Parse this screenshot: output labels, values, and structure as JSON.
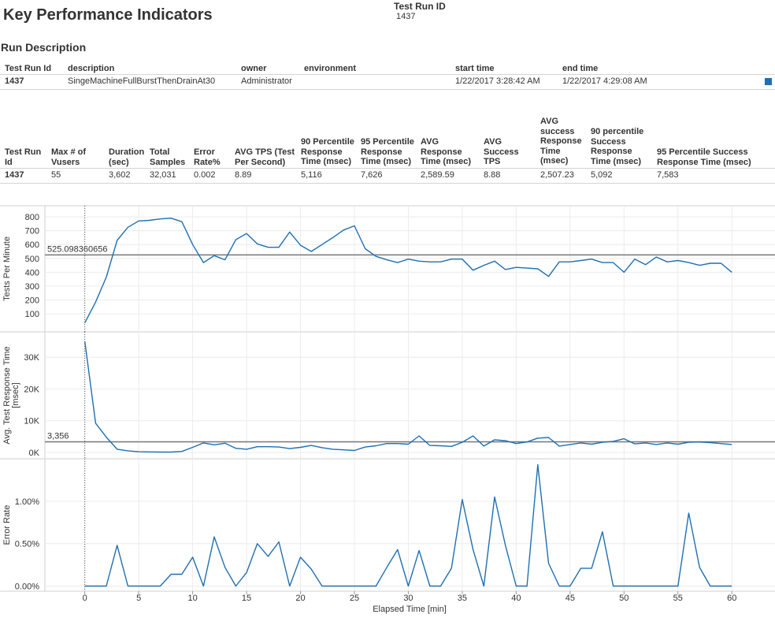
{
  "kpi_title": "Key Performance Indicators",
  "parameter": {
    "label": "Test Run ID",
    "value": "1437"
  },
  "run_description": {
    "title": "Run Description",
    "headers": [
      "Test Run Id",
      "description",
      "owner",
      "environment",
      "start time",
      "end time"
    ],
    "row": [
      "1437",
      "SingeMachineFullBurstThenDrainAt30",
      "Administrator",
      "",
      "1/22/2017 3:28:42 AM",
      "1/22/2017 4:29:08 AM"
    ]
  },
  "kpi_table": {
    "headers": [
      [
        "Test Run",
        "Id"
      ],
      [
        "Max # of",
        "Vusers"
      ],
      [
        "Duration",
        "(sec)"
      ],
      [
        "Total",
        "Samples"
      ],
      [
        "Error",
        "Rate%"
      ],
      [
        "AVG TPS (Test",
        "Per Second)"
      ],
      [
        "90 Percentile",
        "Response",
        "Time (msec)"
      ],
      [
        "95 Percentile",
        "Response",
        "Time (msec)"
      ],
      [
        "AVG",
        "Response",
        "Time (msec)"
      ],
      [
        "AVG",
        "Success",
        "TPS"
      ],
      [
        "AVG",
        "success",
        "Response",
        "Time",
        "(msec)"
      ],
      [
        "90 percentile",
        "Success",
        "Response",
        "Time (msec)"
      ],
      [
        "95 Percentile Success",
        "Response Time (msec)"
      ]
    ],
    "row": [
      "1437",
      "55",
      "3,602",
      "32,031",
      "0.002",
      "8.89",
      "5,116",
      "7,626",
      "2,589.59",
      "8.88",
      "2,507.23",
      "5,092",
      "7,583"
    ]
  },
  "chart_data": [
    {
      "type": "line",
      "ylabel": "Tests Per Minute",
      "yticks": [
        100,
        200,
        300,
        400,
        500,
        600,
        700,
        800
      ],
      "ytick_labels": [
        "100",
        "200",
        "300",
        "400",
        "500",
        "600",
        "700",
        "800"
      ],
      "ylim": [
        -30,
        880
      ],
      "reference_line": {
        "value": 525.098360656,
        "label": "525.098360656"
      },
      "x": [
        0,
        1,
        2,
        3,
        4,
        5,
        6,
        7,
        8,
        9,
        10,
        11,
        12,
        13,
        14,
        15,
        16,
        17,
        18,
        19,
        20,
        21,
        22,
        23,
        24,
        25,
        26,
        27,
        28,
        29,
        30,
        31,
        32,
        33,
        34,
        35,
        36,
        37,
        38,
        39,
        40,
        41,
        42,
        43,
        44,
        45,
        46,
        47,
        48,
        49,
        50,
        51,
        52,
        53,
        54,
        55,
        56,
        57,
        58,
        59,
        60
      ],
      "values": [
        35,
        185,
        365,
        630,
        725,
        770,
        775,
        785,
        790,
        765,
        600,
        470,
        520,
        490,
        635,
        680,
        605,
        580,
        580,
        690,
        595,
        550,
        600,
        650,
        705,
        735,
        570,
        515,
        490,
        470,
        495,
        480,
        475,
        475,
        495,
        495,
        415,
        450,
        480,
        420,
        435,
        430,
        425,
        370,
        475,
        475,
        485,
        495,
        470,
        470,
        400,
        495,
        455,
        510,
        475,
        485,
        470,
        450,
        465,
        465,
        400
      ]
    },
    {
      "type": "line",
      "ylabel": "Avg. Test Response Time [msec]",
      "yticks": [
        0,
        10000,
        20000,
        30000
      ],
      "ytick_labels": [
        "0K",
        "10K",
        "20K",
        "30K"
      ],
      "ylim": [
        -2000,
        38000
      ],
      "reference_line": {
        "value": 3356,
        "label": "3,356"
      },
      "x": [
        0,
        1,
        2,
        3,
        4,
        5,
        6,
        7,
        8,
        9,
        10,
        11,
        12,
        13,
        14,
        15,
        16,
        17,
        18,
        19,
        20,
        21,
        22,
        23,
        24,
        25,
        26,
        27,
        28,
        29,
        30,
        31,
        32,
        33,
        34,
        35,
        36,
        37,
        38,
        39,
        40,
        41,
        42,
        43,
        44,
        45,
        46,
        47,
        48,
        49,
        50,
        51,
        52,
        53,
        54,
        55,
        56,
        57,
        58,
        59,
        60
      ],
      "values": [
        35000,
        9200,
        4800,
        1000,
        500,
        200,
        150,
        100,
        100,
        300,
        1600,
        3000,
        2400,
        2900,
        1300,
        1000,
        1800,
        1800,
        1700,
        1200,
        1600,
        2200,
        1500,
        1000,
        800,
        600,
        1700,
        2100,
        2800,
        2800,
        2600,
        5200,
        2200,
        2100,
        1900,
        3200,
        5200,
        2000,
        4000,
        3700,
        2800,
        3300,
        4500,
        4700,
        2000,
        2500,
        3000,
        2600,
        3200,
        3500,
        4300,
        2700,
        3000,
        2500,
        3000,
        2600,
        3200,
        3300,
        3100,
        2800,
        2500
      ]
    },
    {
      "type": "line",
      "ylabel": "Error Rate",
      "xlabel": "Elapsed Time [min]",
      "yticks": [
        0,
        0.005,
        0.01
      ],
      "ytick_labels": [
        "0.00%",
        "0.50%",
        "1.00%"
      ],
      "ylim": [
        -0.0006,
        0.015
      ],
      "xticks": [
        0,
        5,
        10,
        15,
        20,
        25,
        30,
        35,
        40,
        45,
        50,
        55,
        60
      ],
      "xlim": [
        -3.7,
        64
      ],
      "x": [
        0,
        1,
        2,
        3,
        4,
        5,
        6,
        7,
        8,
        9,
        10,
        11,
        12,
        13,
        14,
        15,
        16,
        17,
        18,
        19,
        20,
        21,
        22,
        23,
        24,
        25,
        26,
        27,
        28,
        29,
        30,
        31,
        32,
        33,
        34,
        35,
        36,
        37,
        38,
        39,
        40,
        41,
        42,
        43,
        44,
        45,
        46,
        47,
        48,
        49,
        50,
        51,
        52,
        53,
        54,
        55,
        56,
        57,
        58,
        59,
        60
      ],
      "values": [
        0,
        0,
        0,
        0.0048,
        0,
        0,
        0,
        0,
        0.0014,
        0.0014,
        0.0034,
        0,
        0.0058,
        0.0022,
        0,
        0.0016,
        0.005,
        0.0035,
        0.0052,
        0,
        0.0034,
        0.002,
        0,
        0,
        0,
        0,
        0,
        0,
        0.0022,
        0.0043,
        0,
        0.0042,
        0,
        0,
        0.0021,
        0.0102,
        0.0043,
        0,
        0.0105,
        0.0048,
        0,
        0,
        0.0143,
        0.0027,
        0,
        0,
        0.0021,
        0.0021,
        0.0064,
        0,
        0,
        0,
        0,
        0,
        0,
        0,
        0.0086,
        0.0022,
        0,
        0,
        0
      ],
      "series_color": "#1f6fb2"
    }
  ]
}
